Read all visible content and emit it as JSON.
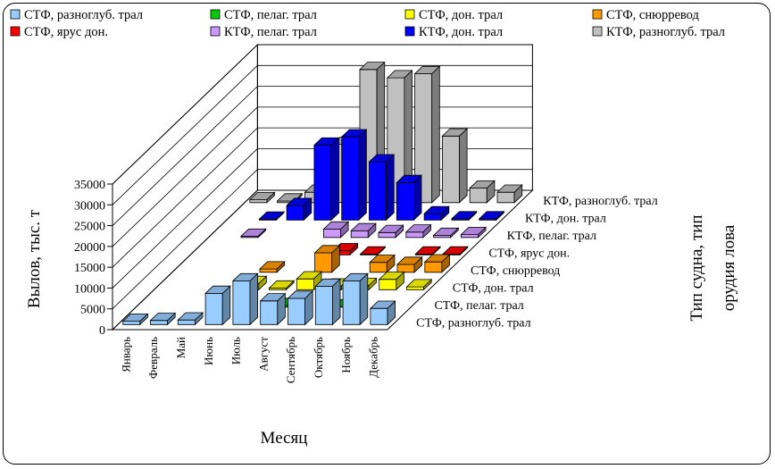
{
  "chart_data": {
    "type": "bar",
    "subtype": "3d-column",
    "xlabel": "Месяц",
    "ylabel": "Вылов, тыс. т",
    "zlabel": "Тип судна, тип орудия лова",
    "ylim": [
      0,
      35000
    ],
    "yticks": [
      "0",
      "5000",
      "10000",
      "15000",
      "20000",
      "25000",
      "30000",
      "35000"
    ],
    "legend_position": "top",
    "grid": true,
    "categories": [
      "Январь",
      "Февраль",
      "Май",
      "Июнь",
      "Июль",
      "Август",
      "Сентябрь",
      "Октябрь",
      "Ноябрь",
      "Декабрь"
    ],
    "series": [
      {
        "name": "СТФ, разноглуб. трал",
        "color": "#99CCFF",
        "values": [
          800,
          1000,
          1100,
          7500,
          10500,
          5700,
          6300,
          9200,
          10500,
          3900
        ]
      },
      {
        "name": "СТФ, пелаг. трал",
        "color": "#00CC00",
        "values": [
          0,
          0,
          0,
          0,
          0,
          400,
          0,
          100,
          0,
          0
        ]
      },
      {
        "name": "СТФ, дон. трал",
        "color": "#FFFF00",
        "values": [
          0,
          0,
          0,
          1500,
          400,
          2600,
          900,
          1000,
          2500,
          700
        ]
      },
      {
        "name": "СТФ, снюрревод",
        "color": "#FF9900",
        "values": [
          0,
          0,
          0,
          800,
          0,
          4700,
          0,
          2400,
          1900,
          2500
        ]
      },
      {
        "name": "СТФ, ярус дон.",
        "color": "#FF0000",
        "values": [
          0,
          0,
          0,
          0,
          0,
          1000,
          200,
          0,
          200,
          200
        ]
      },
      {
        "name": "КТФ, пелаг. трал",
        "color": "#CC99FF",
        "values": [
          0,
          300,
          0,
          0,
          2000,
          1600,
          1200,
          1300,
          500,
          700
        ]
      },
      {
        "name": "КТФ, дон. трал",
        "color": "#0000FF",
        "values": [
          0,
          200,
          3500,
          18000,
          20000,
          14000,
          9000,
          1500,
          300,
          300
        ]
      },
      {
        "name": "КТФ, разноглуб. трал",
        "color": "#C0C0C0",
        "values": [
          700,
          400,
          2500,
          14000,
          32000,
          30000,
          31000,
          16000,
          3500,
          2500
        ]
      }
    ],
    "colors": {
      "accent_face": "#FFFFFF",
      "frame": "#000000"
    }
  }
}
